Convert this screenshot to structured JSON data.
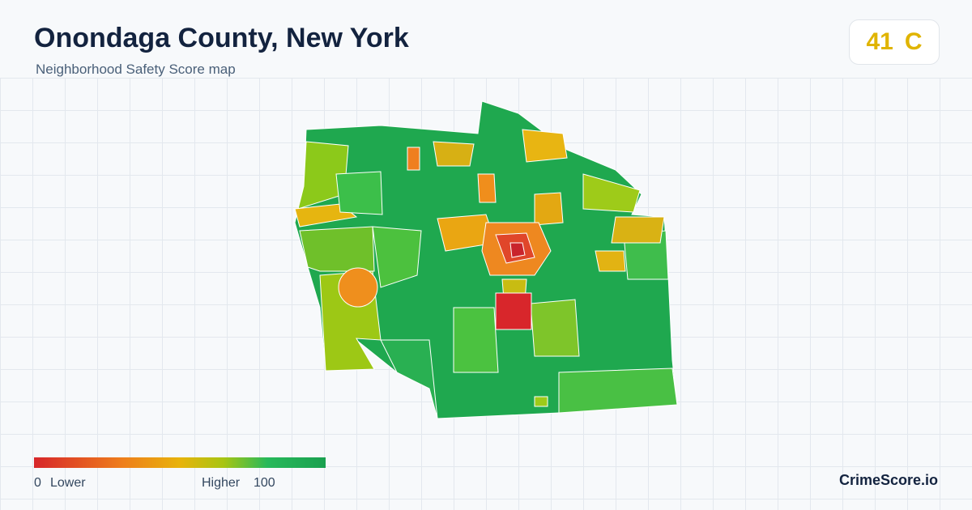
{
  "header": {
    "title": "Onondaga County, New York",
    "subtitle": "Neighborhood Safety Score map"
  },
  "score": {
    "value": 41,
    "grade": "C"
  },
  "legend": {
    "min": 0,
    "min_label": "Lower",
    "max_label": "Higher",
    "max": 100
  },
  "footer": {
    "brand": "CrimeScore.io"
  }
}
